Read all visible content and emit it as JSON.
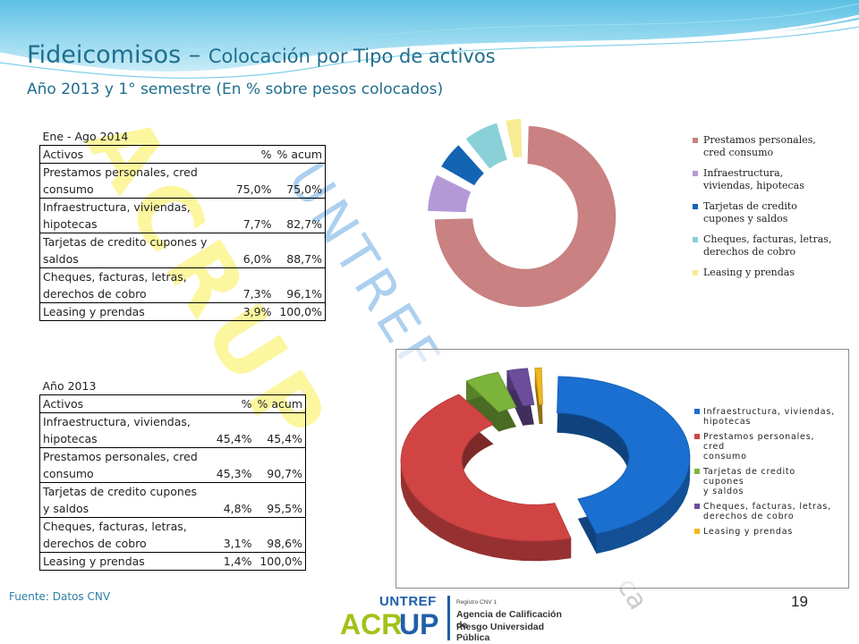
{
  "title": {
    "main": "Fideicomisos",
    "dash": " – ",
    "rest": "Colocación por Tipo de activos",
    "subtitle": "Año 2013 y 1° semestre (En % sobre pesos colocados)"
  },
  "table1": {
    "caption": "Ene - Ago 2014",
    "headers": [
      "Activos",
      "%",
      "% acum"
    ],
    "rows": [
      {
        "l1": "Prestamos personales, cred",
        "l2": "consumo",
        "pct": "75,0%",
        "acum": "75,0%"
      },
      {
        "l1": "Infraestructura, viviendas,",
        "l2": "hipotecas",
        "pct": "7,7%",
        "acum": "82,7%"
      },
      {
        "l1": "Tarjetas de credito cupones y",
        "l2": "saldos",
        "pct": "6,0%",
        "acum": "88,7%"
      },
      {
        "l1": "Cheques, facturas, letras,",
        "l2": "derechos de cobro",
        "pct": "7,3%",
        "acum": "96,1%"
      },
      {
        "l1": "Leasing y prendas",
        "pct": "3,9%",
        "acum": "100,0%"
      }
    ]
  },
  "table2": {
    "caption": "Año 2013",
    "headers": [
      "Activos",
      "%",
      "% acum"
    ],
    "rows": [
      {
        "l1": "Infraestructura, viviendas,",
        "l2": "hipotecas",
        "pct": "45,4%",
        "acum": "45,4%"
      },
      {
        "l1": "Prestamos personales, cred",
        "l2": "consumo",
        "pct": "45,3%",
        "acum": "90,7%"
      },
      {
        "l1": "Tarjetas de credito cupones",
        "l2": "y saldos",
        "pct": "4,8%",
        "acum": "95,5%"
      },
      {
        "l1": "Cheques, facturas, letras,",
        "l2": "derechos de cobro",
        "pct": "3,1%",
        "acum": "98,6%"
      },
      {
        "l1": "Leasing y prendas",
        "pct": "1,4%",
        "acum": "100,0%"
      }
    ]
  },
  "chart_data": [
    {
      "type": "pie",
      "style": "doughnut, exploded",
      "categories": [
        "Prestamos personales, cred consumo",
        "Infraestructura, viviendas, hipotecas",
        "Tarjetas de credito cupones y saldos",
        "Cheques, facturas, letras, derechos de cobro",
        "Leasing y prendas"
      ],
      "values": [
        75.0,
        7.7,
        6.0,
        7.3,
        3.9
      ],
      "colors": [
        "#c98181",
        "#b39ad6",
        "#1464b4",
        "#8ad0d8",
        "#f7ec93"
      ],
      "legend": {
        "position": "right",
        "lines": [
          [
            "Prestamos personales,",
            "cred consumo"
          ],
          [
            "Infraestructura,",
            "viviendas, hipotecas"
          ],
          [
            "Tarjetas de credito",
            "cupones y saldos"
          ],
          [
            "Cheques, facturas, letras,",
            "derechos de cobro"
          ],
          [
            "Leasing y prendas"
          ]
        ]
      }
    },
    {
      "type": "pie",
      "style": "3d doughnut, exploded",
      "categories": [
        "Infraestructura, viviendas, hipotecas",
        "Prestamos personales, cred consumo",
        "Tarjetas de credito cupones y saldos",
        "Cheques, facturas, letras, derechos de cobro",
        "Leasing y prendas"
      ],
      "values": [
        45.4,
        45.3,
        4.8,
        3.1,
        1.4
      ],
      "colors": [
        "#1a6fd0",
        "#d14444",
        "#7cb33a",
        "#6b4d9a",
        "#f0b821"
      ],
      "legend": {
        "position": "right",
        "lines": [
          [
            "Infraestructura, viviendas,",
            "hipotecas"
          ],
          [
            "Prestamos personales, cred",
            "consumo"
          ],
          [
            "Tarjetas de credito cupones",
            "y saldos"
          ],
          [
            "Cheques, facturas, letras,",
            "derechos de cobro"
          ],
          [
            "Leasing y prendas"
          ]
        ]
      }
    }
  ],
  "footer": {
    "source": "Fuente: Datos CNV",
    "page": "19"
  },
  "logo": {
    "untref": "UNTREF",
    "acr": "ACR",
    "up": "UP",
    "registro": "Registro CNV 1",
    "line1": "Agencia de Calificación de",
    "line2": "Riesgo Universidad Pública"
  },
  "watermark": {
    "acrup": "ACRUP",
    "untref": "UNTREF",
    "ca": "ca"
  }
}
